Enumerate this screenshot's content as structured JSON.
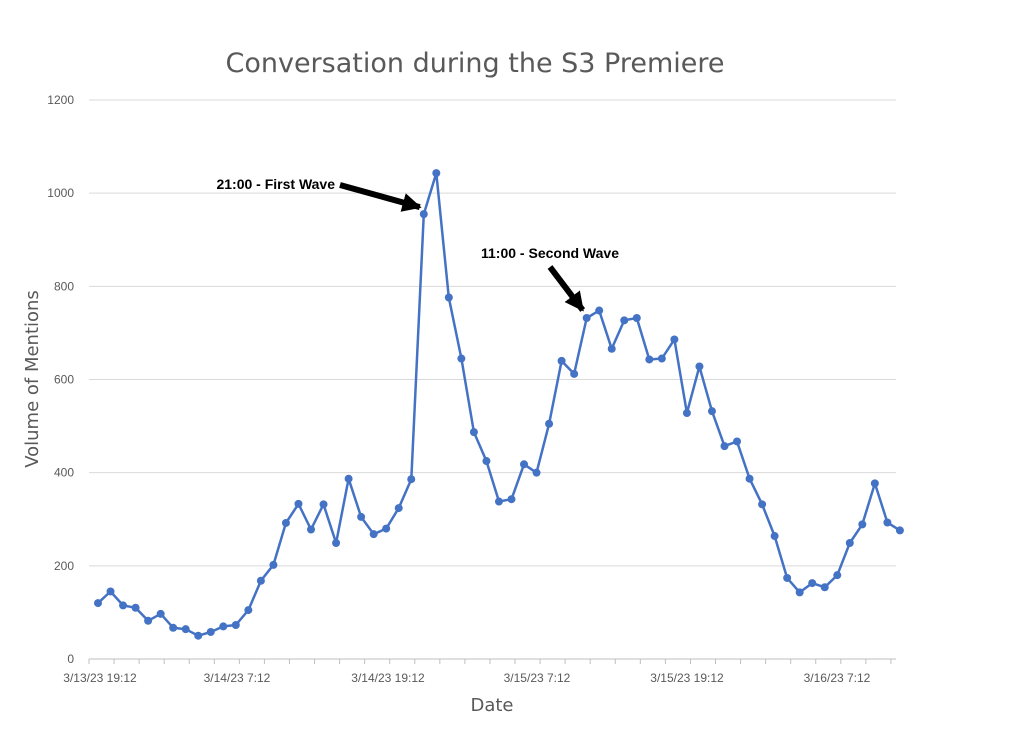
{
  "chart_data": {
    "type": "line",
    "title": "Conversation during the S3 Premiere",
    "xlabel": "Date",
    "ylabel": "Volume of Mentions",
    "ylim": [
      0,
      1200
    ],
    "yticks": [
      "0",
      "200",
      "400",
      "600",
      "800",
      "1000",
      "1200"
    ],
    "xticks": [
      "3/13/23 19:12",
      "3/14/23 7:12",
      "3/14/23 19:12",
      "3/15/23 7:12",
      "3/15/23 19:12",
      "3/16/23 7:12"
    ],
    "grid": true,
    "legend": "none",
    "colors": {
      "line": "#4472c4",
      "grid": "#d9d9d9",
      "annotation": "#000000",
      "text": "#595959"
    },
    "series": [
      {
        "values": [
          120,
          145,
          115,
          110,
          82,
          97,
          67,
          64,
          50,
          58,
          70,
          73,
          105,
          168,
          202,
          292,
          333,
          278,
          332,
          249,
          387,
          305,
          268,
          280,
          324,
          386,
          955,
          1043,
          776,
          645,
          487,
          425,
          338,
          343,
          418,
          400,
          505,
          640,
          612,
          732,
          748,
          666,
          727,
          732,
          643,
          645,
          686,
          528,
          628,
          532,
          457,
          467,
          387,
          332,
          264,
          174,
          143,
          163,
          154,
          180,
          249,
          289,
          377,
          293,
          276
        ]
      }
    ],
    "annotations": [
      {
        "text": "21:00 - First Wave",
        "target_index": 26
      },
      {
        "text": "11:00 - Second Wave",
        "target_index": 39
      }
    ]
  }
}
